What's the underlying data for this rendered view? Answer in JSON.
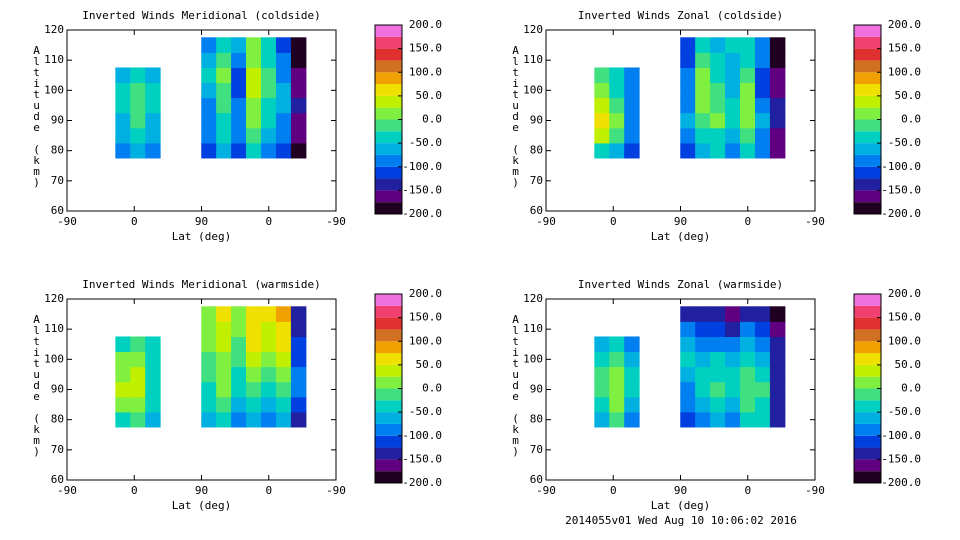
{
  "chart_data": [
    {
      "type": "contour",
      "title": "Inverted Winds Meridional (coldside)",
      "xlabel": "Lat (deg)",
      "ylabel": "Altitude (km)",
      "xlim": [
        0,
        360
      ],
      "xticks": [
        {
          "value": 0,
          "label": "-90"
        },
        {
          "value": 90,
          "label": "0"
        },
        {
          "value": 180,
          "label": "90"
        },
        {
          "value": 270,
          "label": "0"
        },
        {
          "value": 360,
          "label": "-90"
        }
      ],
      "ylim": [
        60,
        120
      ],
      "yticks": [
        60,
        70,
        80,
        90,
        100,
        110,
        120
      ],
      "x": [
        75,
        95,
        115,
        190,
        210,
        230,
        250,
        270,
        290,
        310
      ],
      "y": [
        80,
        85,
        90,
        95,
        100,
        105,
        110,
        115
      ],
      "z": [
        [
          -90,
          -60,
          -90,
          -120,
          -60,
          -110,
          -30,
          -80,
          -120,
          -180
        ],
        [
          -70,
          -40,
          -70,
          -100,
          -40,
          -90,
          -10,
          -60,
          -100,
          -170
        ],
        [
          -60,
          -20,
          -60,
          -90,
          -30,
          -80,
          10,
          -40,
          -80,
          -160
        ],
        [
          -50,
          -10,
          -50,
          -80,
          -20,
          -100,
          20,
          -30,
          -70,
          -150
        ],
        [
          -40,
          -20,
          -50,
          -60,
          -10,
          -120,
          30,
          -20,
          -60,
          -160
        ],
        [
          -60,
          -40,
          -70,
          -50,
          0,
          -110,
          40,
          -10,
          -80,
          -170
        ],
        [
          null,
          null,
          null,
          -70,
          -10,
          -90,
          20,
          -30,
          -100,
          -180
        ],
        [
          null,
          null,
          null,
          -90,
          -30,
          -70,
          0,
          -50,
          -120,
          -190
        ]
      ],
      "zlim": [
        -200,
        200
      ],
      "zticks": [
        {
          "value": 200,
          "label": "200.0"
        },
        {
          "value": 150,
          "label": "150.0"
        },
        {
          "value": 100,
          "label": "100.0"
        },
        {
          "value": 50,
          "label": "50.0"
        },
        {
          "value": 0,
          "label": "0.0"
        },
        {
          "value": -50,
          "label": "-50.0"
        },
        {
          "value": -100,
          "label": "-100.0"
        },
        {
          "value": -150,
          "label": "-150.0"
        },
        {
          "value": -200,
          "label": "-200.0"
        }
      ],
      "colors": [
        "#200020",
        "#600080",
        "#2020a0",
        "#0040e0",
        "#0080f0",
        "#00b0e0",
        "#00d0c0",
        "#40e080",
        "#80f040",
        "#c0f000",
        "#f0e000",
        "#f0a000",
        "#d07020",
        "#e03030",
        "#f04070",
        "#f070e0"
      ]
    },
    {
      "type": "contour",
      "title": "Inverted Winds Zonal (coldside)",
      "xlabel": "Lat (deg)",
      "ylabel": "Altitude (km)",
      "xlim": [
        0,
        360
      ],
      "xticks": [
        {
          "value": 0,
          "label": "-90"
        },
        {
          "value": 90,
          "label": "0"
        },
        {
          "value": 180,
          "label": "90"
        },
        {
          "value": 270,
          "label": "0"
        },
        {
          "value": 360,
          "label": "-90"
        }
      ],
      "ylim": [
        60,
        120
      ],
      "yticks": [
        60,
        70,
        80,
        90,
        100,
        110,
        120
      ],
      "x": [
        75,
        95,
        115,
        190,
        210,
        230,
        250,
        270,
        290,
        310
      ],
      "y": [
        80,
        85,
        90,
        95,
        100,
        105,
        110,
        115
      ],
      "z": [
        [
          -30,
          -60,
          -110,
          -110,
          -70,
          -50,
          -90,
          -40,
          -100,
          -170
        ],
        [
          30,
          -20,
          -90,
          -90,
          -40,
          -30,
          -70,
          -10,
          -80,
          -160
        ],
        [
          60,
          0,
          -80,
          -70,
          -10,
          0,
          -50,
          20,
          -70,
          -150
        ],
        [
          40,
          -10,
          -80,
          -80,
          10,
          -20,
          -40,
          10,
          -90,
          -150
        ],
        [
          10,
          -30,
          -90,
          -90,
          20,
          -10,
          -60,
          0,
          -110,
          -160
        ],
        [
          -20,
          -50,
          -100,
          -100,
          0,
          -30,
          -70,
          -20,
          -120,
          -170
        ],
        [
          null,
          null,
          null,
          -110,
          -20,
          -50,
          -60,
          -40,
          -100,
          -180
        ],
        [
          null,
          null,
          null,
          -120,
          -40,
          -60,
          -50,
          -50,
          -90,
          -190
        ]
      ],
      "zlim": [
        -200,
        200
      ],
      "zticks": [
        {
          "value": 200,
          "label": "200.0"
        },
        {
          "value": 150,
          "label": "150.0"
        },
        {
          "value": 100,
          "label": "100.0"
        },
        {
          "value": 50,
          "label": "50.0"
        },
        {
          "value": 0,
          "label": "0.0"
        },
        {
          "value": -50,
          "label": "-50.0"
        },
        {
          "value": -100,
          "label": "-100.0"
        },
        {
          "value": -150,
          "label": "-150.0"
        },
        {
          "value": -200,
          "label": "-200.0"
        }
      ],
      "colors": [
        "#200020",
        "#600080",
        "#2020a0",
        "#0040e0",
        "#0080f0",
        "#00b0e0",
        "#00d0c0",
        "#40e080",
        "#80f040",
        "#c0f000",
        "#f0e000",
        "#f0a000",
        "#d07020",
        "#e03030",
        "#f04070",
        "#f070e0"
      ]
    },
    {
      "type": "contour",
      "title": "Inverted Winds Meridional (warmside)",
      "xlabel": "Lat (deg)",
      "ylabel": "Altitude (km)",
      "xlim": [
        0,
        360
      ],
      "xticks": [
        {
          "value": 0,
          "label": "-90"
        },
        {
          "value": 90,
          "label": "0"
        },
        {
          "value": 180,
          "label": "90"
        },
        {
          "value": 270,
          "label": "0"
        },
        {
          "value": 360,
          "label": "-90"
        }
      ],
      "ylim": [
        60,
        120
      ],
      "yticks": [
        60,
        70,
        80,
        90,
        100,
        110,
        120
      ],
      "x": [
        75,
        95,
        115,
        190,
        210,
        230,
        250,
        270,
        290,
        310
      ],
      "y": [
        80,
        85,
        90,
        95,
        100,
        105,
        110,
        115
      ],
      "z": [
        [
          -40,
          -20,
          -70,
          -70,
          -50,
          -90,
          -60,
          -100,
          -70,
          -130
        ],
        [
          10,
          20,
          -40,
          -40,
          -20,
          -60,
          -30,
          -60,
          -40,
          -110
        ],
        [
          30,
          40,
          -30,
          -30,
          0,
          -40,
          -10,
          -30,
          -10,
          -100
        ],
        [
          20,
          30,
          -30,
          -20,
          10,
          -30,
          10,
          -10,
          20,
          -100
        ],
        [
          0,
          10,
          -40,
          -10,
          20,
          -20,
          30,
          10,
          40,
          -110
        ],
        [
          -30,
          -20,
          -50,
          0,
          30,
          -10,
          50,
          30,
          60,
          -120
        ],
        [
          null,
          null,
          null,
          10,
          40,
          0,
          60,
          40,
          70,
          -130
        ],
        [
          null,
          null,
          null,
          20,
          50,
          10,
          70,
          50,
          80,
          -150
        ]
      ],
      "zlim": [
        -200,
        200
      ],
      "zticks": [
        {
          "value": 200,
          "label": "200.0"
        },
        {
          "value": 150,
          "label": "150.0"
        },
        {
          "value": 100,
          "label": "100.0"
        },
        {
          "value": 50,
          "label": "50.0"
        },
        {
          "value": 0,
          "label": "0.0"
        },
        {
          "value": -50,
          "label": "-50.0"
        },
        {
          "value": -100,
          "label": "-100.0"
        },
        {
          "value": -150,
          "label": "-150.0"
        },
        {
          "value": -200,
          "label": "-200.0"
        }
      ],
      "colors": [
        "#200020",
        "#600080",
        "#2020a0",
        "#0040e0",
        "#0080f0",
        "#00b0e0",
        "#00d0c0",
        "#40e080",
        "#80f040",
        "#c0f000",
        "#f0e000",
        "#f0a000",
        "#d07020",
        "#e03030",
        "#f04070",
        "#f070e0"
      ]
    },
    {
      "type": "contour",
      "title": "Inverted Winds Zonal (warmside)",
      "xlabel": "Lat (deg)",
      "ylabel": "Altitude (km)",
      "xlim": [
        0,
        360
      ],
      "xticks": [
        {
          "value": 0,
          "label": "-90"
        },
        {
          "value": 90,
          "label": "0"
        },
        {
          "value": 180,
          "label": "90"
        },
        {
          "value": 270,
          "label": "0"
        },
        {
          "value": 360,
          "label": "-90"
        }
      ],
      "ylim": [
        60,
        120
      ],
      "yticks": [
        60,
        70,
        80,
        90,
        100,
        110,
        120
      ],
      "x": [
        75,
        95,
        115,
        190,
        210,
        230,
        250,
        270,
        290,
        310
      ],
      "y": [
        80,
        85,
        90,
        95,
        100,
        105,
        110,
        115
      ],
      "z": [
        [
          -60,
          -20,
          -80,
          -120,
          -100,
          -60,
          -80,
          -40,
          -50,
          -150
        ],
        [
          -30,
          0,
          -60,
          -100,
          -70,
          -40,
          -60,
          -20,
          -30,
          -140
        ],
        [
          -10,
          10,
          -50,
          -80,
          -50,
          -20,
          -40,
          -10,
          -20,
          -130
        ],
        [
          -20,
          0,
          -50,
          -60,
          -40,
          -30,
          -50,
          -20,
          -40,
          -130
        ],
        [
          -40,
          -10,
          -60,
          -40,
          -60,
          -50,
          -70,
          -40,
          -60,
          -140
        ],
        [
          -60,
          -30,
          -80,
          -70,
          -90,
          -80,
          -100,
          -70,
          -90,
          -150
        ],
        [
          null,
          null,
          null,
          -100,
          -110,
          -110,
          -130,
          -100,
          -120,
          -170
        ],
        [
          null,
          null,
          null,
          -130,
          -140,
          -140,
          -160,
          -140,
          -150,
          -190
        ]
      ],
      "zlim": [
        -200,
        200
      ],
      "zticks": [
        {
          "value": 200,
          "label": "200.0"
        },
        {
          "value": 150,
          "label": "150.0"
        },
        {
          "value": 100,
          "label": "100.0"
        },
        {
          "value": 50,
          "label": "50.0"
        },
        {
          "value": 0,
          "label": "0.0"
        },
        {
          "value": -50,
          "label": "-50.0"
        },
        {
          "value": -100,
          "label": "-100.0"
        },
        {
          "value": -150,
          "label": "-150.0"
        },
        {
          "value": -200,
          "label": "-200.0"
        }
      ],
      "colors": [
        "#200020",
        "#600080",
        "#2020a0",
        "#0040e0",
        "#0080f0",
        "#00b0e0",
        "#00d0c0",
        "#40e080",
        "#80f040",
        "#c0f000",
        "#f0e000",
        "#f0a000",
        "#d07020",
        "#e03030",
        "#f04070",
        "#f070e0"
      ]
    }
  ],
  "footer": "2014055v01 Wed Aug 10 10:06:02 2016"
}
